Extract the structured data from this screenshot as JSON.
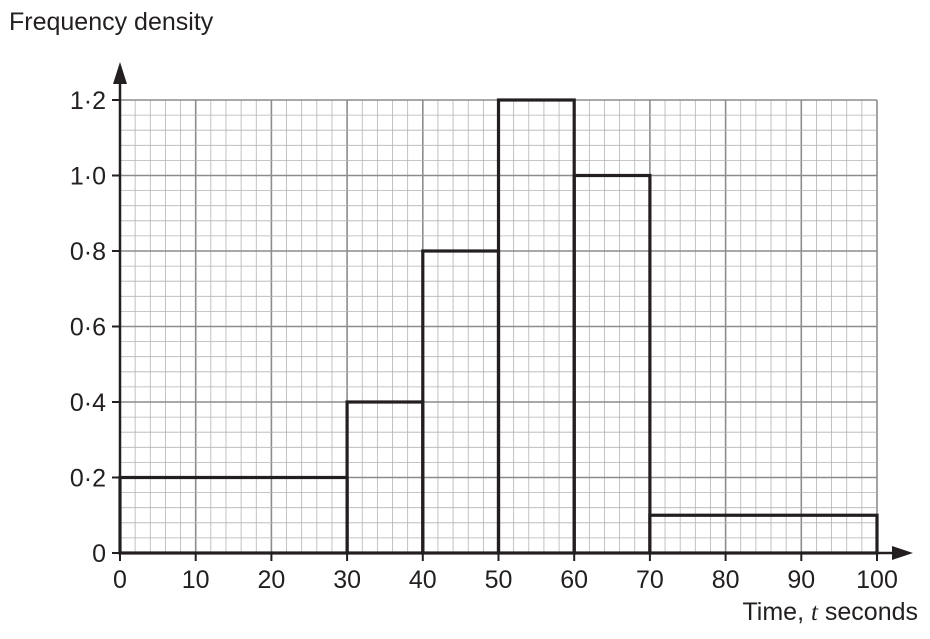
{
  "chart_data": {
    "type": "histogram",
    "ylabel": "Frequency density",
    "xlabel_prefix": "Time, ",
    "xlabel_var": "t",
    "xlabel_suffix": " seconds",
    "xlim": [
      0,
      100
    ],
    "ylim": [
      0,
      1.2
    ],
    "xticks": [
      0,
      10,
      20,
      30,
      40,
      50,
      60,
      70,
      80,
      90,
      100
    ],
    "xtick_labels": [
      "0",
      "10",
      "20",
      "30",
      "40",
      "50",
      "60",
      "70",
      "80",
      "90",
      "100"
    ],
    "yticks": [
      0,
      0.2,
      0.4,
      0.6,
      0.8,
      1.0,
      1.2
    ],
    "ytick_labels": [
      "0",
      "0·2",
      "0·4",
      "0·6",
      "0·8",
      "1·0",
      "1·2"
    ],
    "grid": true,
    "bins": [
      {
        "start": 0,
        "end": 30,
        "value": 0.2
      },
      {
        "start": 30,
        "end": 40,
        "value": 0.4
      },
      {
        "start": 40,
        "end": 50,
        "value": 0.8
      },
      {
        "start": 50,
        "end": 60,
        "value": 1.2
      },
      {
        "start": 60,
        "end": 70,
        "value": 1.0
      },
      {
        "start": 70,
        "end": 100,
        "value": 0.1
      }
    ],
    "colors": {
      "minor_grid": "#b3b3b3",
      "major_grid": "#8c8c8c",
      "bars": "#231f20"
    }
  }
}
